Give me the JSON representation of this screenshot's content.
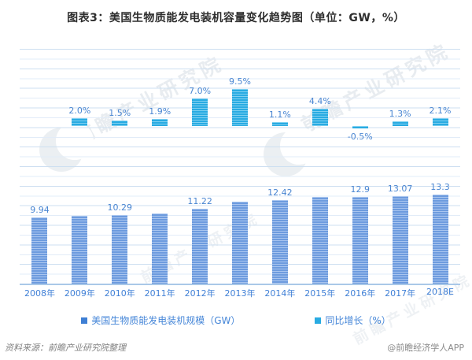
{
  "title": "图表3：美国生物质能发电装机容量变化趋势图（单位：GW，%）",
  "watermark": {
    "text": "前瞻产业研究院"
  },
  "chart_data": {
    "type": "bar",
    "categories": [
      "2008年",
      "2009年",
      "2010年",
      "2011年",
      "2012年",
      "2013年",
      "2014年",
      "2015年",
      "2016年",
      "2017年",
      "2018E"
    ],
    "series": [
      {
        "name": "美国生物质能发电装机规模（GW）",
        "unit": "GW",
        "color": "#6d9bde",
        "values": [
          9.94,
          10.14,
          10.29,
          10.49,
          11.22,
          12.29,
          12.42,
          12.97,
          12.9,
          13.07,
          13.3
        ],
        "labels": [
          "9.94",
          "",
          "10.29",
          "",
          "11.22",
          "",
          "12.42",
          "",
          "12.9",
          "13.07",
          "13.3"
        ]
      },
      {
        "name": "同比增长（%）",
        "unit": "%",
        "color": "#29abe2",
        "values": [
          null,
          2.0,
          1.5,
          1.9,
          7.0,
          9.5,
          1.1,
          4.4,
          -0.5,
          1.3,
          2.1
        ],
        "labels": [
          "",
          "2.0%",
          "1.5%",
          "1.9%",
          "7.0%",
          "9.5%",
          "1.1%",
          "4.4%",
          "-0.5%",
          "1.3%",
          "2.1%"
        ]
      }
    ],
    "title": "图表3：美国生物质能发电装机容量变化趋势图（单位：GW，%）",
    "xlabel": "",
    "ylabel": "",
    "grid": true,
    "legend_position": "bottom",
    "gw_axis_range": [
      0,
      14
    ],
    "growth_axis_range": [
      -2,
      10
    ]
  },
  "legend": {
    "items": [
      {
        "label": "美国生物质能发电装机规模（GW）",
        "color": "#3e7fd4"
      },
      {
        "label": "同比增长（%）",
        "color": "#29abe2"
      }
    ]
  },
  "footer": {
    "source": "资料来源：前瞻产业研究院整理",
    "credit": "@前瞻经济学人APP"
  }
}
